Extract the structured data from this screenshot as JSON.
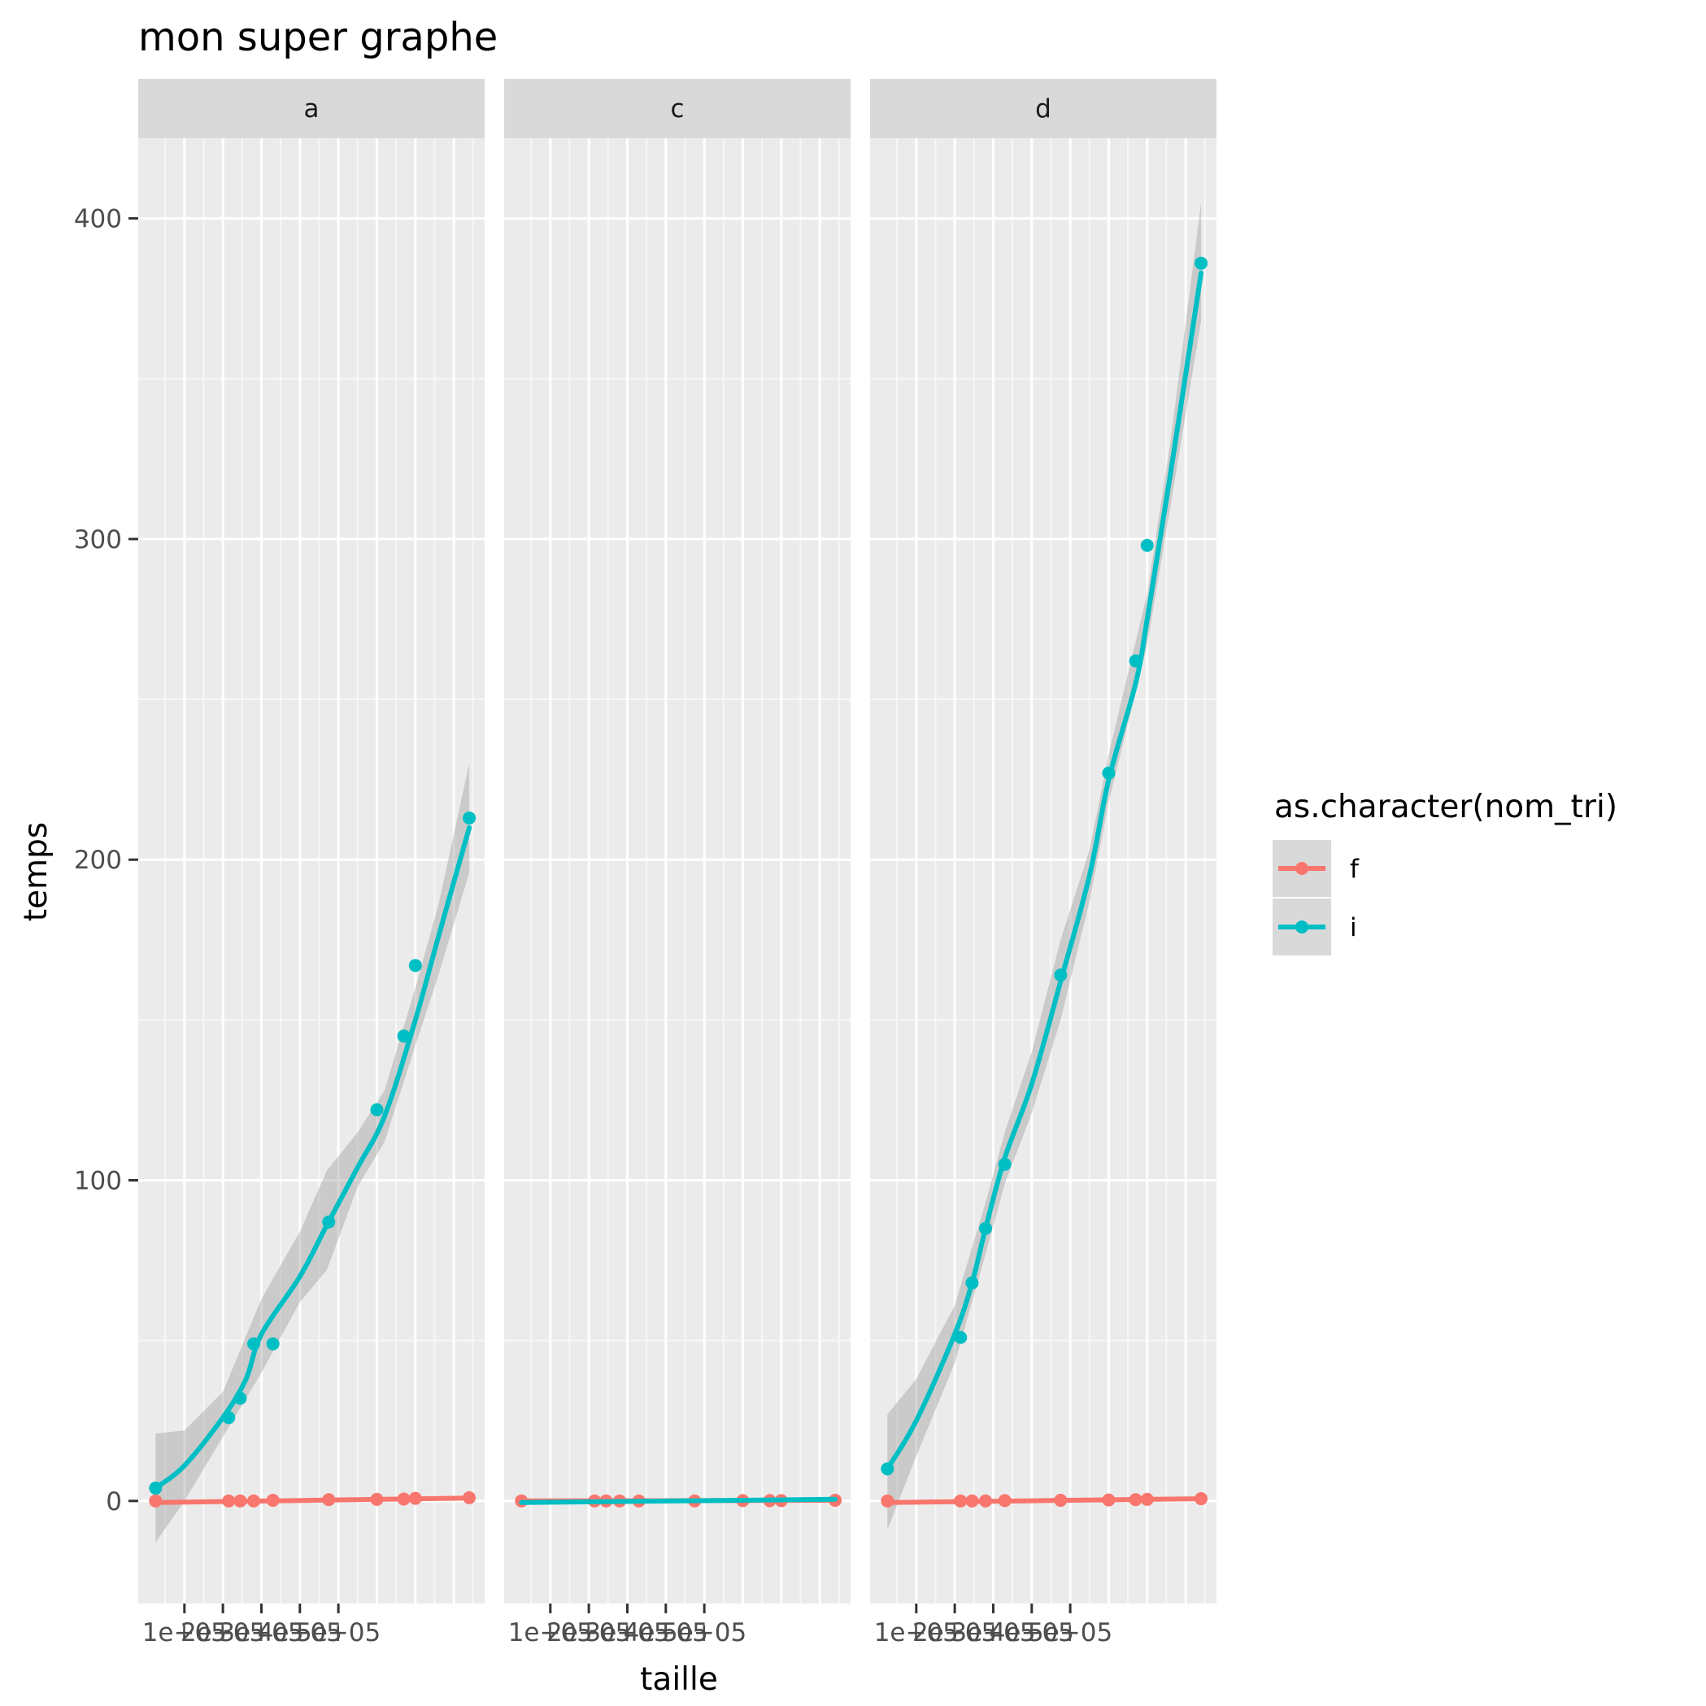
{
  "chart_data": {
    "type": "line",
    "title": "mon super graphe",
    "xlabel": "taille",
    "ylabel": "temps",
    "x_ticks": [
      100000,
      200000,
      300000,
      400000,
      500000
    ],
    "x_tick_labels": [
      "1e+05",
      "2e+05",
      "3e+05",
      "4e+05",
      "5e+05"
    ],
    "y_ticks": [
      0,
      100,
      200,
      300,
      400
    ],
    "y_tick_labels": [
      "0",
      "100",
      "200",
      "300",
      "400"
    ],
    "xlim": [
      0,
      700000
    ],
    "ylim": [
      -32,
      425
    ],
    "grid": true,
    "smooth": true,
    "legend": {
      "title": "as.character(nom_tri)",
      "position": "right",
      "entries": [
        {
          "name": "f",
          "color": "#F8766D"
        },
        {
          "name": "i",
          "color": "#00BFC4"
        }
      ]
    },
    "x": [
      25000,
      215000,
      245000,
      280000,
      330000,
      475000,
      600000,
      670000,
      700000,
      840000
    ],
    "panels": [
      {
        "label": "a",
        "series": [
          {
            "name": "f",
            "values": [
              0,
              0,
              0,
              0,
              0.2,
              0.4,
              0.5,
              0.6,
              0.8,
              1.0
            ],
            "smooth": [
              [
                25000,
                -0.5
              ],
              [
                840000,
                0.9
              ]
            ]
          },
          {
            "name": "i",
            "values": [
              4,
              26,
              32,
              49,
              49,
              87,
              122,
              145,
              167,
              213
            ],
            "smooth": [
              [
                25000,
                4
              ],
              [
                100000,
                11
              ],
              [
                200000,
                26
              ],
              [
                260000,
                38
              ],
              [
                300000,
                52
              ],
              [
                400000,
                70
              ],
              [
                470000,
                86
              ],
              [
                550000,
                104
              ],
              [
                620000,
                120
              ],
              [
                700000,
                150
              ],
              [
                760000,
                176
              ],
              [
                840000,
                210
              ]
            ],
            "band": [
              [
                25000,
                21,
                -13
              ],
              [
                100000,
                22,
                0
              ],
              [
                200000,
                34,
                20
              ],
              [
                300000,
                63,
                40
              ],
              [
                400000,
                84,
                62
              ],
              [
                470000,
                103,
                72
              ],
              [
                550000,
                115,
                98
              ],
              [
                620000,
                128,
                112
              ],
              [
                700000,
                160,
                142
              ],
              [
                760000,
                186,
                164
              ],
              [
                840000,
                230,
                196
              ]
            ]
          }
        ]
      },
      {
        "label": "c",
        "series": [
          {
            "name": "f",
            "values": [
              0,
              0,
              0,
              0,
              0,
              0,
              0.1,
              0.1,
              0.1,
              0.2
            ],
            "smooth": [
              [
                25000,
                0
              ],
              [
                840000,
                0.2
              ]
            ]
          },
          {
            "name": "i",
            "values": [
              null,
              null,
              null,
              null,
              null,
              null,
              null,
              null,
              null,
              null
            ],
            "smooth": [
              [
                25000,
                -0.5
              ],
              [
                840000,
                0.5
              ]
            ]
          }
        ]
      },
      {
        "label": "d",
        "series": [
          {
            "name": "f",
            "values": [
              0,
              0,
              0,
              0,
              0.1,
              0.2,
              0.3,
              0.4,
              0.5,
              0.7
            ],
            "smooth": [
              [
                25000,
                -0.5
              ],
              [
                840000,
                0.7
              ]
            ]
          },
          {
            "name": "i",
            "values": [
              10,
              51,
              68,
              85,
              105,
              164,
              227,
              262,
              298,
              386
            ],
            "smooth": [
              [
                25000,
                10
              ],
              [
                100000,
                25
              ],
              [
                200000,
                52
              ],
              [
                245000,
                68
              ],
              [
                280000,
                85
              ],
              [
                330000,
                107
              ],
              [
                400000,
                130
              ],
              [
                475000,
                162
              ],
              [
                550000,
                195
              ],
              [
                600000,
                225
              ],
              [
                670000,
                255
              ],
              [
                700000,
                275
              ],
              [
                760000,
                320
              ],
              [
                840000,
                383
              ]
            ],
            "band": [
              [
                25000,
                27,
                -9
              ],
              [
                100000,
                38,
                14
              ],
              [
                200000,
                61,
                43
              ],
              [
                280000,
                93,
                77
              ],
              [
                330000,
                115,
                99
              ],
              [
                400000,
                140,
                121
              ],
              [
                475000,
                175,
                150
              ],
              [
                550000,
                203,
                187
              ],
              [
                600000,
                233,
                218
              ],
              [
                700000,
                283,
                267
              ],
              [
                760000,
                330,
                310
              ],
              [
                840000,
                405,
                368
              ]
            ]
          }
        ]
      }
    ]
  }
}
